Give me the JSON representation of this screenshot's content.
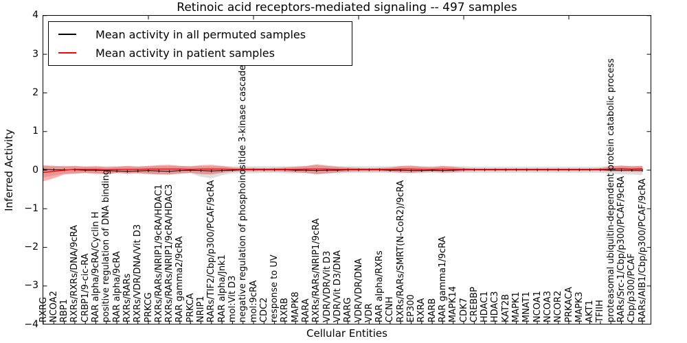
{
  "chart_data": {
    "type": "line",
    "title": "Retinoic acid receptors-mediated signaling -- 497 samples",
    "xlabel": "Cellular Entities",
    "ylabel": "Inferred Activity",
    "ylim": [
      -4,
      4
    ],
    "ytick_values": [
      4,
      3,
      2,
      1,
      0,
      -1,
      -2,
      -3,
      -4
    ],
    "ytick_labels": [
      "4",
      "3",
      "2",
      "1",
      "0",
      "−1",
      "−2",
      "−3",
      "−4"
    ],
    "grid": false,
    "legend_position": "upper left",
    "categories": [
      "RXRG",
      "NCOA2",
      "RBP1",
      "RXRs/RXRs/DNA/9cRA",
      "CRBP1/9-cic-RA",
      "RAR alpha/9cRA/Cyclin H",
      "positive regulation of DNA binding",
      "RAR alpha/9cRA",
      "RXRs/RARs",
      "RXRs/VDR/DNA/Vit D3",
      "PRKCG",
      "RXRs/RARs/NRIP1/9cRA/HDAC1",
      "RXRs/RARs/NRIP1/9cRA/HDAC3",
      "RAR gamma2/9cRA",
      "PRKCA",
      "NRIP1",
      "RARs/TIF2/Cbp/p300/PCAF/9cRA",
      "RAR alpha/Jnk1",
      "mol:Vit D3",
      "negative regulation of phosphoinositide 3-kinase cascade",
      "mol:9cRA",
      "CDC2",
      "response to UV",
      "RXRB",
      "MAPK8",
      "RARA",
      "RXRs/RARs/NRIP1/9cRA",
      "VDR/VDR/Vit D3",
      "VDR/Vit D3/DNA",
      "RARG",
      "VDR/VDR/DNA",
      "VDR",
      "RAR alpha/RXRs",
      "CCNH",
      "RXRs/RARs/SMRT(N-CoR2)/9cRA",
      "EP300",
      "RXRA",
      "RARB",
      "RAR gamma1/9cRA",
      "MAPK14",
      "CDK7",
      "CREBBP",
      "HDAC1",
      "HDAC3",
      "KAT2B",
      "MAPK1",
      "MNAT1",
      "NCOA1",
      "NCOA3",
      "NCOR2",
      "PRKACA",
      "MAPK3",
      "AKT1",
      "TFIIH",
      "proteasomal ubiquitin-dependent protein catabolic process",
      "RARs/Src-1/Cbp/p300/PCAF/9cRA",
      "Cbp/p300/PCAF",
      "RARs/AIB1/Cbp/p300/PCAF/9cRA"
    ],
    "series": [
      {
        "name": "Mean activity in all permuted samples",
        "color": "#000000",
        "values": [
          0.01,
          0,
          0,
          0,
          -0.01,
          -0.01,
          -0.02,
          -0.03,
          -0.04,
          -0.03,
          -0.02,
          -0.03,
          -0.04,
          -0.02,
          -0.01,
          -0.02,
          -0.03,
          -0.02,
          -0.01,
          0,
          0,
          0,
          0,
          0,
          -0.01,
          -0.01,
          -0.02,
          -0.01,
          -0.01,
          0,
          0,
          0,
          0,
          -0.01,
          -0.01,
          -0.02,
          -0.02,
          -0.01,
          -0.02,
          -0.01,
          0,
          0,
          0,
          0,
          0,
          0,
          0,
          0,
          0,
          0,
          0,
          0,
          0,
          0,
          -0.01,
          -0.01,
          -0.01,
          -0.01
        ]
      },
      {
        "name": "Mean activity in patient samples",
        "color": "#ff0000",
        "values": [
          -0.07,
          -0.04,
          -0.01,
          0.01,
          0.01,
          0.01,
          0,
          0.01,
          0.01,
          0.01,
          0.02,
          0.02,
          0.02,
          0.02,
          0.01,
          0.02,
          0.02,
          0.02,
          0.01,
          0.01,
          0.01,
          0.01,
          0.01,
          0.01,
          0.01,
          0.02,
          0.02,
          0.02,
          0.01,
          0.01,
          0.01,
          0.01,
          0.01,
          0.01,
          0.02,
          0.02,
          0.01,
          0.01,
          0.02,
          0.01,
          0.01,
          0.01,
          0.01,
          0.01,
          0.01,
          0.01,
          0.01,
          0.01,
          0.01,
          0.01,
          0.01,
          0.01,
          0.01,
          0.01,
          0.02,
          0.03,
          0.02,
          0.03
        ]
      }
    ],
    "bands": [
      {
        "name": "permuted samples std band",
        "color": "rgba(0,0,0,0.13)",
        "upper": [
          0.1,
          0.09,
          0.09,
          0.09,
          0.09,
          0.09,
          0.09,
          0.09,
          0.09,
          0.09,
          0.09,
          0.1,
          0.1,
          0.1,
          0.09,
          0.09,
          0.09,
          0.09,
          0.09,
          0.09,
          0.09,
          0.09,
          0.09,
          0.09,
          0.09,
          0.09,
          0.15,
          0.12,
          0.09,
          0.09,
          0.09,
          0.09,
          0.09,
          0.09,
          0.09,
          0.09,
          0.09,
          0.09,
          0.09,
          0.09,
          0.09,
          0.08,
          0.08,
          0.08,
          0.08,
          0.08,
          0.08,
          0.08,
          0.08,
          0.08,
          0.08,
          0.08,
          0.08,
          0.08,
          0.1,
          0.1,
          0.1,
          0.1
        ],
        "lower": [
          -0.2,
          -0.15,
          -0.1,
          -0.09,
          -0.09,
          -0.09,
          -0.1,
          -0.09,
          -0.09,
          -0.09,
          -0.1,
          -0.12,
          -0.13,
          -0.11,
          -0.09,
          -0.18,
          -0.22,
          -0.14,
          -0.09,
          -0.09,
          -0.09,
          -0.08,
          -0.08,
          -0.09,
          -0.09,
          -0.09,
          -0.12,
          -0.1,
          -0.09,
          -0.08,
          -0.08,
          -0.08,
          -0.08,
          -0.08,
          -0.09,
          -0.09,
          -0.09,
          -0.08,
          -0.09,
          -0.08,
          -0.08,
          -0.08,
          -0.08,
          -0.08,
          -0.08,
          -0.08,
          -0.08,
          -0.08,
          -0.08,
          -0.08,
          -0.08,
          -0.08,
          -0.08,
          -0.08,
          -0.1,
          -0.12,
          -0.12,
          -0.14
        ]
      },
      {
        "name": "patient samples std band",
        "color": "rgba(255,0,0,0.32)",
        "upper": [
          0.12,
          0.1,
          0.09,
          0.1,
          0.08,
          0.09,
          0.07,
          0.08,
          0.1,
          0.08,
          0.1,
          0.12,
          0.13,
          0.1,
          0.09,
          0.12,
          0.13,
          0.1,
          0.06,
          0.05,
          0.05,
          0.04,
          0.05,
          0.06,
          0.08,
          0.1,
          0.13,
          0.1,
          0.08,
          0.06,
          0.05,
          0.04,
          0.05,
          0.06,
          0.1,
          0.11,
          0.08,
          0.07,
          0.1,
          0.08,
          0.05,
          0.03,
          0.03,
          0.03,
          0.03,
          0.03,
          0.03,
          0.03,
          0.03,
          0.03,
          0.03,
          0.03,
          0.03,
          0.04,
          0.09,
          0.11,
          0.09,
          0.1
        ],
        "lower": [
          -0.3,
          -0.22,
          -0.12,
          -0.1,
          -0.08,
          -0.1,
          -0.12,
          -0.08,
          -0.1,
          -0.09,
          -0.11,
          -0.12,
          -0.12,
          -0.09,
          -0.08,
          -0.11,
          -0.12,
          -0.08,
          -0.05,
          -0.04,
          -0.04,
          -0.04,
          -0.04,
          -0.05,
          -0.07,
          -0.08,
          -0.11,
          -0.09,
          -0.07,
          -0.05,
          -0.04,
          -0.04,
          -0.04,
          -0.05,
          -0.07,
          -0.08,
          -0.06,
          -0.05,
          -0.07,
          -0.06,
          -0.04,
          -0.03,
          -0.03,
          -0.03,
          -0.03,
          -0.03,
          -0.03,
          -0.03,
          -0.03,
          -0.03,
          -0.03,
          -0.03,
          -0.03,
          -0.03,
          -0.04,
          -0.05,
          -0.05,
          -0.06
        ]
      }
    ]
  }
}
